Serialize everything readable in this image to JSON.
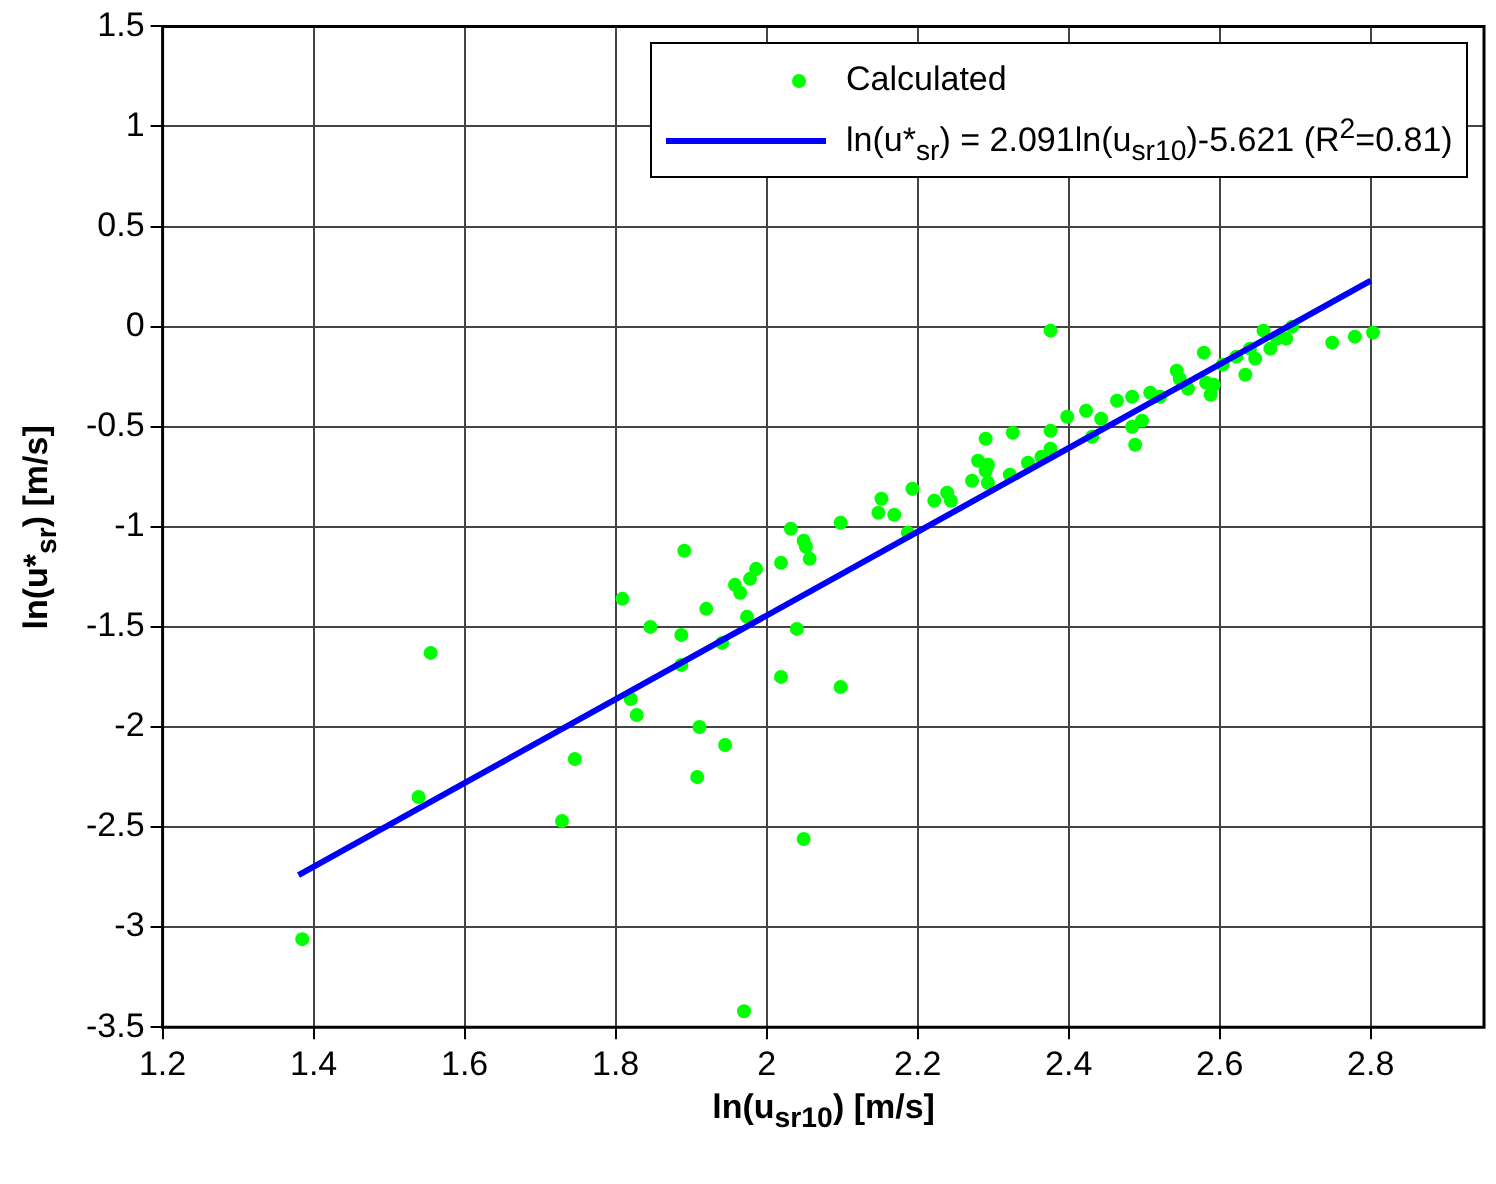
{
  "chart_data": {
    "type": "scatter",
    "xlabel": "ln(u$_{sr10}$) [m/s]",
    "ylabel": "ln(u*$_{sr}$) [m/s]",
    "xlim": [
      1.2,
      2.95
    ],
    "xticks": [
      1.2,
      1.4,
      1.6,
      1.8,
      2,
      2.2,
      2.4,
      2.6,
      2.8
    ],
    "ylim": [
      -3.5,
      1.5
    ],
    "yticks": [
      -3.5,
      -3,
      -2.5,
      -2,
      -1.5,
      -1,
      -0.5,
      0,
      0.5,
      1,
      1.5
    ],
    "grid": true,
    "legend": "top right",
    "marker": "circle",
    "series": [
      {
        "name": "Calculated",
        "color": "#00ff00",
        "x": [
          1.385,
          1.555,
          1.539,
          1.746,
          1.729,
          1.809,
          1.82,
          1.828,
          1.846,
          1.887,
          1.887,
          1.891,
          1.92,
          1.911,
          1.908,
          1.945,
          1.941,
          1.958,
          1.965,
          1.974,
          1.978,
          1.986,
          2.019,
          2.032,
          2.049,
          2.052,
          2.057,
          2.04,
          2.019,
          2.098,
          2.049,
          2.098,
          2.148,
          2.152,
          2.169,
          2.193,
          2.187,
          2.222,
          2.239,
          2.244,
          2.272,
          2.29,
          2.293,
          1.97,
          2.28,
          2.29,
          2.293,
          2.322,
          2.326,
          2.346,
          2.364,
          2.376,
          2.376,
          2.376,
          2.398,
          2.423,
          2.431,
          2.443,
          2.464,
          2.484,
          2.484,
          2.488,
          2.497,
          2.508,
          2.521,
          2.543,
          2.547,
          2.558,
          2.579,
          2.582,
          2.588,
          2.592,
          2.604,
          2.622,
          2.634,
          2.64,
          2.647,
          2.658,
          2.667,
          2.676,
          2.688,
          2.696,
          2.749,
          2.779,
          2.803
        ],
        "values": [
          -3.06,
          -1.63,
          -2.35,
          -2.16,
          -2.47,
          -1.36,
          -1.86,
          -1.94,
          -1.5,
          -1.54,
          -1.69,
          -1.12,
          -1.41,
          -2.0,
          -2.25,
          -2.09,
          -1.58,
          -1.29,
          -1.33,
          -1.45,
          -1.26,
          -1.21,
          -1.18,
          -1.01,
          -1.07,
          -1.1,
          -1.16,
          -1.51,
          -1.75,
          -1.8,
          -2.56,
          -0.98,
          -0.93,
          -0.86,
          -0.94,
          -0.81,
          -1.03,
          -0.87,
          -0.83,
          -0.87,
          -0.77,
          -0.72,
          -0.78,
          -3.42,
          -0.67,
          -0.56,
          -0.69,
          -0.74,
          -0.53,
          -0.68,
          -0.65,
          -0.52,
          -0.61,
          -0.02,
          -0.45,
          -0.42,
          -0.55,
          -0.46,
          -0.37,
          -0.35,
          -0.5,
          -0.59,
          -0.47,
          -0.33,
          -0.35,
          -0.22,
          -0.26,
          -0.31,
          -0.13,
          -0.28,
          -0.34,
          -0.29,
          -0.19,
          -0.15,
          -0.24,
          -0.11,
          -0.16,
          -0.02,
          -0.11,
          -0.06,
          -0.06,
          0.0,
          -0.08,
          -0.05,
          -0.03
        ]
      },
      {
        "name": "ln(u*$_{sr}$) = 2.091ln(u$_{sr10}$)-5.621 (R$^{2}$=0.81)",
        "type": "line",
        "color": "#0000ff",
        "marker": "none",
        "line_style": "solid",
        "x": [
          1.38,
          2.8
        ],
        "values": [
          -2.74,
          0.23
        ]
      }
    ]
  }
}
